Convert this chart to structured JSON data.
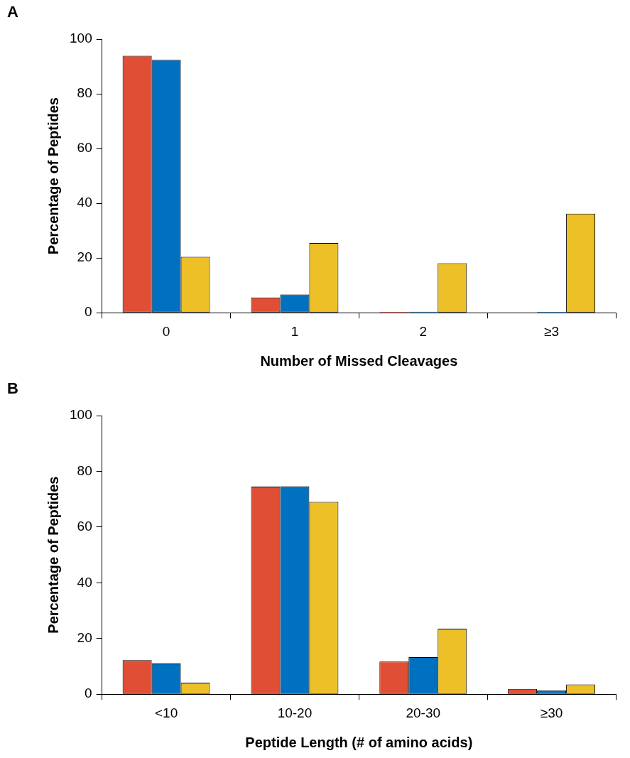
{
  "chart_data": [
    {
      "type": "bar",
      "annotations": [
        "A"
      ],
      "xlabel": "Number of Missed Cleavages",
      "ylabel": "Percentage of Peptides",
      "categories": [
        "0",
        "1",
        "2",
        "≥3"
      ],
      "ylim": [
        0,
        100
      ],
      "yticks": [
        0,
        20,
        40,
        60,
        80,
        100
      ],
      "series": [
        {
          "color": "#e04e35",
          "values": [
            93.9,
            5.6,
            0.3,
            null
          ]
        },
        {
          "color": "#0070c0",
          "values": [
            92.4,
            6.7,
            0.4,
            0.3
          ]
        },
        {
          "color": "#ecc026",
          "values": [
            20.4,
            25.5,
            18.1,
            36.2
          ]
        }
      ]
    },
    {
      "type": "bar",
      "annotations": [
        "B"
      ],
      "xlabel": "Peptide Length (# of amino acids)",
      "ylabel": "Percentage of Peptides",
      "categories": [
        "<10",
        "10-20",
        "20-30",
        "≥30"
      ],
      "ylim": [
        0,
        100
      ],
      "yticks": [
        0,
        20,
        40,
        60,
        80,
        100
      ],
      "series": [
        {
          "color": "#e04e35",
          "values": [
            12.2,
            74.5,
            11.7,
            1.9
          ]
        },
        {
          "color": "#0070c0",
          "values": [
            11.0,
            74.6,
            13.3,
            1.4
          ]
        },
        {
          "color": "#ecc026",
          "values": [
            4.1,
            69.0,
            23.5,
            3.5
          ]
        }
      ]
    }
  ]
}
